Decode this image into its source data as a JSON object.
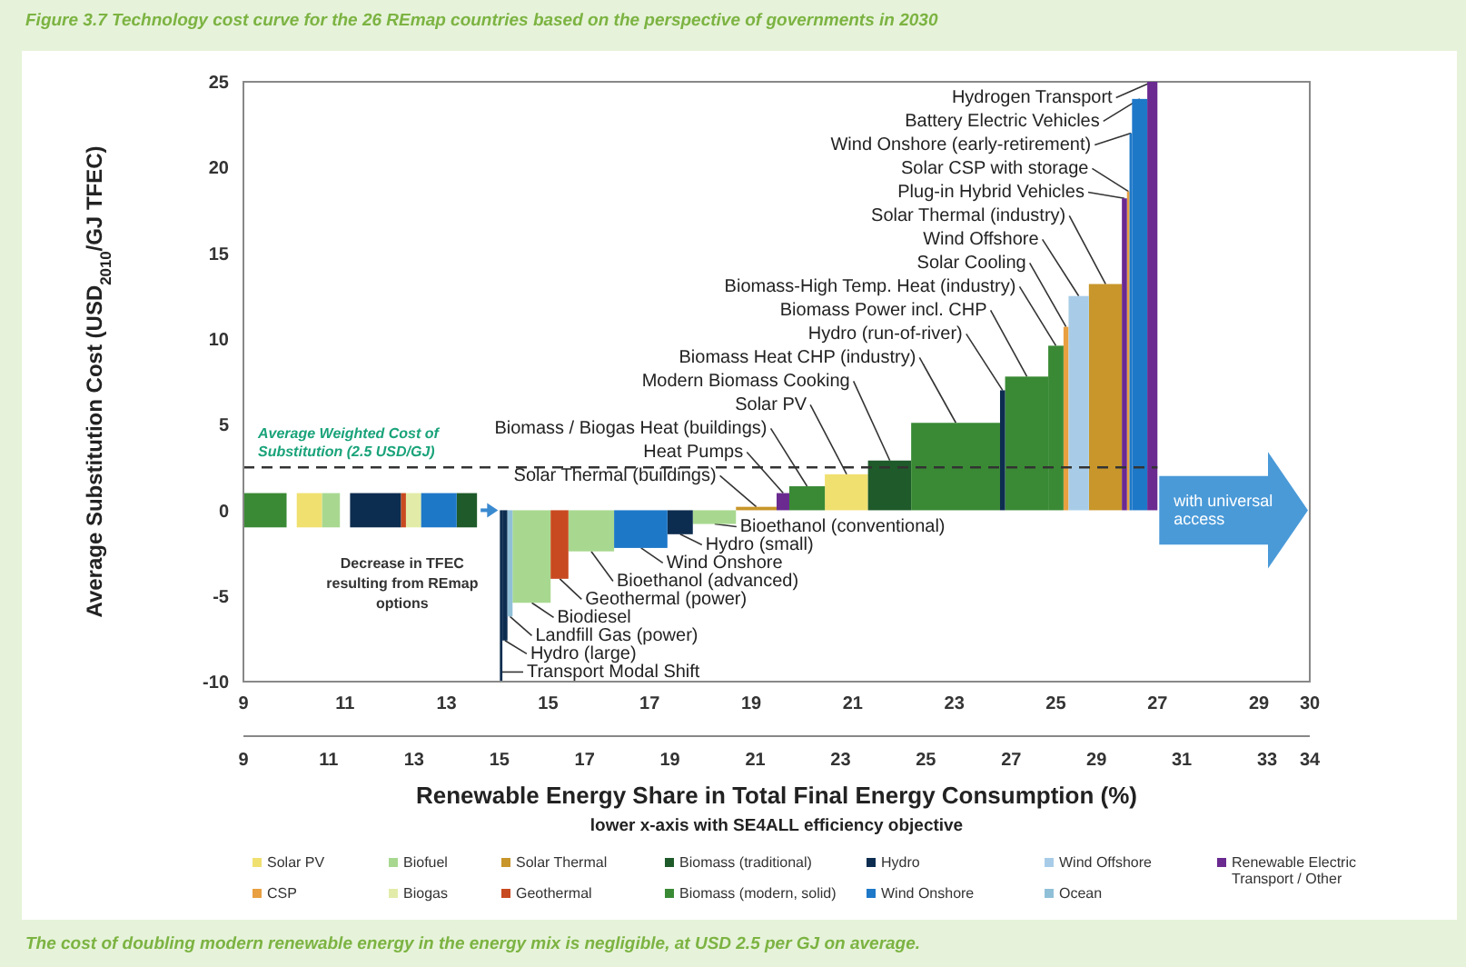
{
  "chart_data": {
    "type": "histogram",
    "title": "Figure 3.7 Technology cost curve for the 26 REmap countries based on the perspective of governments in 2030",
    "xlabel": "Renewable Energy Share in Total Final Energy Consumption (%)",
    "x2label": "lower x-axis with SE4ALL efficiency objective",
    "ylabel": "Average Substitution Cost (USD$_{2010}$/GJ TFEC)",
    "xlim": [
      9,
      30
    ],
    "xticks": [
      9,
      11,
      13,
      15,
      17,
      19,
      21,
      23,
      25,
      27,
      29,
      30
    ],
    "x2lim": [
      9,
      34
    ],
    "x2ticks": [
      9,
      11,
      13,
      15,
      17,
      19,
      21,
      23,
      25,
      27,
      29,
      31,
      33,
      34
    ],
    "ylim": [
      -10,
      25
    ],
    "yticks": [
      -10,
      -5,
      0,
      5,
      10,
      15,
      20,
      25
    ],
    "legend": "bottom",
    "bins": [
      9.0,
      9.85,
      10.05,
      10.55,
      10.9,
      11.1,
      12.1,
      12.2,
      12.5,
      13.2,
      13.6,
      14.05,
      14.1,
      14.2,
      14.3,
      15.05,
      15.4,
      16.3,
      17.35,
      17.85,
      18.7,
      19.5,
      19.75,
      20.45,
      21.3,
      22.15,
      23.9,
      24.0,
      24.85,
      25.15,
      25.25,
      25.65,
      26.3,
      26.4,
      26.45,
      26.5,
      26.8,
      27.0
    ],
    "series": [
      {
        "name": "Solar PV",
        "color": "#f0e070",
        "values": [
          null,
          null,
          2,
          null,
          null,
          null,
          null,
          null,
          null,
          null,
          null,
          null,
          null,
          null,
          null,
          null,
          null,
          null,
          null,
          null,
          null,
          null,
          null,
          2.1,
          null,
          null,
          null,
          null,
          null,
          null,
          null,
          null,
          null,
          null,
          null,
          null,
          null
        ],
        "base": [
          null,
          null,
          -1,
          null,
          null,
          null,
          null,
          null,
          null,
          null,
          null,
          null,
          null,
          null,
          null,
          null,
          null,
          null,
          null,
          null,
          null,
          null,
          null,
          null,
          null,
          null,
          null,
          null,
          null,
          null,
          null,
          null,
          null,
          null,
          null,
          null,
          null
        ]
      },
      {
        "name": "CSP",
        "color": "#e8a040",
        "values": [
          null,
          null,
          null,
          null,
          null,
          null,
          null,
          null,
          null,
          null,
          null,
          null,
          null,
          null,
          null,
          null,
          null,
          null,
          null,
          null,
          null,
          null,
          null,
          null,
          null,
          null,
          null,
          null,
          null,
          10.7,
          null,
          null,
          null,
          18.6,
          null,
          null,
          null
        ]
      },
      {
        "name": "Biofuel",
        "color": "#a8d890",
        "values": [
          null,
          null,
          null,
          2,
          null,
          null,
          null,
          null,
          null,
          null,
          null,
          null,
          null,
          null,
          -5.4,
          null,
          -2.4,
          null,
          null,
          -0.8,
          null,
          null,
          null,
          null,
          null,
          null,
          null,
          null,
          null,
          null,
          null,
          null,
          null,
          null,
          null,
          null,
          null
        ],
        "base": [
          null,
          null,
          null,
          -1,
          null,
          null,
          null,
          null,
          null,
          null,
          null,
          null,
          null,
          null,
          null,
          null,
          null,
          null,
          null,
          null,
          null,
          null,
          null,
          null,
          null,
          null,
          null,
          null,
          null,
          null,
          null,
          null,
          null,
          null,
          null,
          null,
          null
        ]
      },
      {
        "name": "Biogas",
        "color": "#e2eca8",
        "values": [
          null,
          null,
          null,
          null,
          null,
          null,
          null,
          2,
          null,
          null,
          null,
          null,
          null,
          null,
          null,
          null,
          null,
          null,
          null,
          null,
          null,
          null,
          null,
          null,
          null,
          null,
          null,
          null,
          null,
          null,
          null,
          null,
          null,
          null,
          null,
          null,
          null
        ],
        "base": [
          null,
          null,
          null,
          null,
          null,
          null,
          null,
          -1,
          null,
          null,
          null,
          null,
          null,
          null,
          null,
          null,
          null,
          null,
          null,
          null,
          null,
          null,
          null,
          null,
          null,
          null,
          null,
          null,
          null,
          null,
          null,
          null,
          null,
          null,
          null,
          null,
          null
        ]
      },
      {
        "name": "Solar Thermal",
        "color": "#c8962a",
        "values": [
          null,
          null,
          null,
          null,
          null,
          null,
          null,
          null,
          null,
          null,
          null,
          null,
          null,
          null,
          null,
          null,
          null,
          null,
          null,
          null,
          0.2,
          null,
          null,
          null,
          null,
          null,
          null,
          null,
          null,
          null,
          null,
          13.2,
          null,
          null,
          null,
          null,
          null
        ]
      },
      {
        "name": "Geothermal",
        "color": "#c84a20",
        "values": [
          null,
          null,
          null,
          null,
          null,
          null,
          2,
          null,
          null,
          null,
          null,
          null,
          null,
          null,
          null,
          -4.0,
          null,
          null,
          null,
          null,
          null,
          null,
          null,
          null,
          null,
          null,
          null,
          null,
          null,
          null,
          null,
          null,
          null,
          null,
          null,
          null,
          null
        ],
        "base": [
          null,
          null,
          null,
          null,
          null,
          null,
          -1,
          null,
          null,
          null,
          null,
          null,
          null,
          null,
          null,
          null,
          null,
          null,
          null,
          null,
          null,
          null,
          null,
          null,
          null,
          null,
          null,
          null,
          null,
          null,
          null,
          null,
          null,
          null,
          null,
          null,
          null
        ]
      },
      {
        "name": "Biomass (traditional)",
        "color": "#1f5a2a",
        "values": [
          null,
          null,
          null,
          null,
          null,
          null,
          null,
          null,
          null,
          2,
          null,
          null,
          null,
          null,
          null,
          null,
          null,
          null,
          null,
          null,
          null,
          null,
          null,
          null,
          2.9,
          null,
          null,
          null,
          null,
          null,
          null,
          null,
          null,
          null,
          null,
          null,
          null
        ],
        "base": [
          null,
          null,
          null,
          null,
          null,
          null,
          null,
          null,
          null,
          -1,
          null,
          null,
          null,
          null,
          null,
          null,
          null,
          null,
          null,
          null,
          null,
          null,
          null,
          null,
          null,
          null,
          null,
          null,
          null,
          null,
          null,
          null,
          null,
          null,
          null,
          null,
          null
        ]
      },
      {
        "name": "Biomass (modern, solid)",
        "color": "#3a8a35",
        "values": [
          2,
          null,
          null,
          null,
          null,
          null,
          null,
          null,
          null,
          null,
          null,
          null,
          null,
          null,
          null,
          null,
          null,
          null,
          null,
          null,
          null,
          null,
          1.4,
          null,
          null,
          5.1,
          null,
          7.8,
          9.6,
          null,
          null,
          null,
          null,
          null,
          null,
          null,
          null
        ],
        "base": [
          -1,
          null,
          null,
          null,
          null,
          null,
          null,
          null,
          null,
          null,
          null,
          null,
          null,
          null,
          null,
          null,
          null,
          null,
          null,
          null,
          null,
          null,
          null,
          null,
          null,
          null,
          null,
          null,
          null,
          null,
          null,
          null,
          null,
          null,
          null,
          null,
          null
        ]
      },
      {
        "name": "Hydro",
        "color": "#0d2d50",
        "values": [
          null,
          null,
          null,
          null,
          null,
          2,
          null,
          null,
          null,
          null,
          null,
          -10,
          -7.6,
          null,
          null,
          null,
          null,
          null,
          -1.4,
          null,
          null,
          null,
          null,
          null,
          null,
          null,
          7.0,
          null,
          null,
          null,
          null,
          null,
          null,
          null,
          null,
          null,
          null
        ],
        "base": [
          null,
          null,
          null,
          null,
          null,
          -1,
          null,
          null,
          null,
          null,
          null,
          null,
          null,
          null,
          null,
          null,
          null,
          null,
          null,
          null,
          null,
          null,
          null,
          null,
          null,
          null,
          null,
          null,
          null,
          null,
          null,
          null,
          null,
          null,
          null,
          null,
          null
        ]
      },
      {
        "name": "Wind Onshore",
        "color": "#1e78c8",
        "values": [
          null,
          null,
          null,
          null,
          null,
          null,
          null,
          null,
          2,
          null,
          null,
          null,
          null,
          null,
          null,
          null,
          null,
          -2.2,
          null,
          null,
          null,
          null,
          null,
          null,
          null,
          null,
          null,
          null,
          null,
          null,
          null,
          null,
          null,
          null,
          22.0,
          24.0,
          null
        ],
        "base": [
          null,
          null,
          null,
          null,
          null,
          null,
          null,
          null,
          -1,
          null,
          null,
          null,
          null,
          null,
          null,
          null,
          null,
          null,
          null,
          null,
          null,
          null,
          null,
          null,
          null,
          null,
          null,
          null,
          null,
          null,
          null,
          null,
          null,
          null,
          null,
          null,
          null
        ]
      },
      {
        "name": "Wind Offshore",
        "color": "#a8cce8",
        "values": [
          null,
          null,
          null,
          null,
          null,
          null,
          null,
          null,
          null,
          null,
          null,
          null,
          null,
          null,
          null,
          null,
          null,
          null,
          null,
          null,
          null,
          null,
          null,
          null,
          null,
          null,
          null,
          null,
          null,
          null,
          12.5,
          null,
          null,
          null,
          null,
          null,
          null
        ]
      },
      {
        "name": "Ocean",
        "color": "#90c0d8",
        "values": [
          null,
          null,
          null,
          null,
          null,
          null,
          null,
          null,
          null,
          null,
          null,
          null,
          null,
          -6.2,
          null,
          null,
          null,
          null,
          null,
          null,
          null,
          null,
          null,
          null,
          null,
          null,
          null,
          null,
          null,
          null,
          null,
          null,
          null,
          null,
          null,
          null,
          null
        ]
      },
      {
        "name": "Renewable Electric Transport / Other",
        "color": "#6a2a90",
        "values": [
          null,
          null,
          null,
          null,
          null,
          null,
          null,
          null,
          null,
          null,
          null,
          null,
          null,
          null,
          null,
          null,
          null,
          null,
          null,
          null,
          null,
          1.0,
          null,
          null,
          null,
          null,
          null,
          null,
          null,
          null,
          null,
          null,
          18.2,
          null,
          null,
          null,
          25
        ]
      }
    ],
    "ref_lines": [
      {
        "axis": "y",
        "value": 2.5,
        "label": "Average Weighted Cost of Substitution (2.5 USD/GJ)",
        "color": "#333333",
        "line_style": "dashed"
      }
    ],
    "annotations": [
      {
        "text": "Transport Modal Shift",
        "x": 14.08,
        "y": -10
      },
      {
        "text": "Hydro (large)",
        "x": 14.15,
        "y": -7.6
      },
      {
        "text": "Landfill Gas (power)",
        "x": 14.25,
        "y": -6.2
      },
      {
        "text": "Biodiesel",
        "x": 14.68,
        "y": -5.4
      },
      {
        "text": "Geothermal (power)",
        "x": 15.23,
        "y": -4.0
      },
      {
        "text": "Bioethanol (advanced)",
        "x": 15.85,
        "y": -2.4
      },
      {
        "text": "Wind Onshore",
        "x": 16.83,
        "y": -2.2
      },
      {
        "text": "Hydro (small)",
        "x": 17.6,
        "y": -1.4
      },
      {
        "text": "Bioethanol (conventional)",
        "x": 18.28,
        "y": -0.8
      },
      {
        "text": "Solar Thermal (buildings)",
        "x": 19.1,
        "y": 0.2
      },
      {
        "text": "Heat Pumps",
        "x": 19.63,
        "y": 1.0
      },
      {
        "text": "Biomass / Biogas Heat (buildings)",
        "x": 20.1,
        "y": 1.4
      },
      {
        "text": "Solar PV",
        "x": 20.88,
        "y": 2.1
      },
      {
        "text": "Modern Biomass Cooking",
        "x": 21.73,
        "y": 2.9
      },
      {
        "text": "Biomass Heat CHP (industry)",
        "x": 23.03,
        "y": 5.1
      },
      {
        "text": "Hydro (run-of-river)",
        "x": 23.95,
        "y": 7.0
      },
      {
        "text": "Biomass Power incl. CHP",
        "x": 24.43,
        "y": 7.8
      },
      {
        "text": "Biomass-High Temp. Heat (industry)",
        "x": 25.0,
        "y": 9.6
      },
      {
        "text": "Solar Cooling",
        "x": 25.2,
        "y": 10.7
      },
      {
        "text": "Wind Offshore",
        "x": 25.45,
        "y": 12.5
      },
      {
        "text": "Solar Thermal (industry)",
        "x": 25.98,
        "y": 13.2
      },
      {
        "text": "Plug-in Hybrid Vehicles",
        "x": 26.35,
        "y": 18.2
      },
      {
        "text": "Solar CSP with storage",
        "x": 26.43,
        "y": 18.6
      },
      {
        "text": "Wind Onshore (early-retirement)",
        "x": 26.48,
        "y": 22.0
      },
      {
        "text": "Battery Electric Vehicles",
        "x": 26.65,
        "y": 24.0
      },
      {
        "text": "Hydrogen Transport",
        "x": 26.9,
        "y": 25
      },
      "Decrease in TFEC resulting from REmap options",
      "with universal access",
      "The cost of doubling modern renewable energy in the energy mix is negligible, at USD 2.5 per GJ on average."
    ]
  }
}
